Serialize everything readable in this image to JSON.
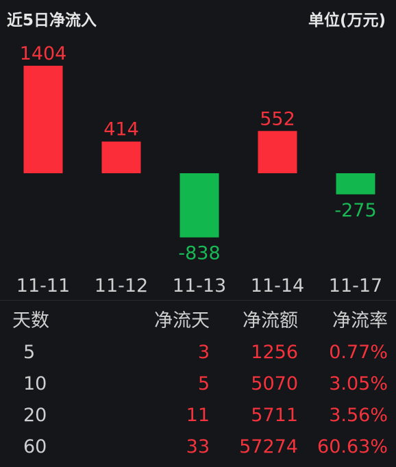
{
  "header": {
    "title": "近5日净流入",
    "unit": "单位(万元)"
  },
  "colors": {
    "positive": "#fb2d38",
    "negative": "#12b84e",
    "positive_text": "#f5333d",
    "negative_text": "#19b955",
    "axis_text": "#cfcfcf",
    "background": "#151619"
  },
  "chart_data": {
    "type": "bar",
    "categories": [
      "11-11",
      "11-12",
      "11-13",
      "11-14",
      "11-17"
    ],
    "values": [
      1404,
      414,
      -838,
      552,
      -275
    ],
    "title": "近5日净流入",
    "xlabel": "",
    "ylabel": "单位(万元)",
    "ylim": [
      -838,
      1404
    ],
    "grid": false,
    "legend": "none"
  },
  "table": {
    "headers": {
      "days": "天数",
      "netdays": "净流天",
      "amount": "净流额",
      "rate": "净流率"
    },
    "rows": [
      {
        "days": "5",
        "netdays": "3",
        "amount": "1256",
        "rate": "0.77%"
      },
      {
        "days": "10",
        "netdays": "5",
        "amount": "5070",
        "rate": "3.05%"
      },
      {
        "days": "20",
        "netdays": "11",
        "amount": "5711",
        "rate": "3.56%"
      },
      {
        "days": "60",
        "netdays": "33",
        "amount": "57274",
        "rate": "60.63%"
      }
    ]
  }
}
